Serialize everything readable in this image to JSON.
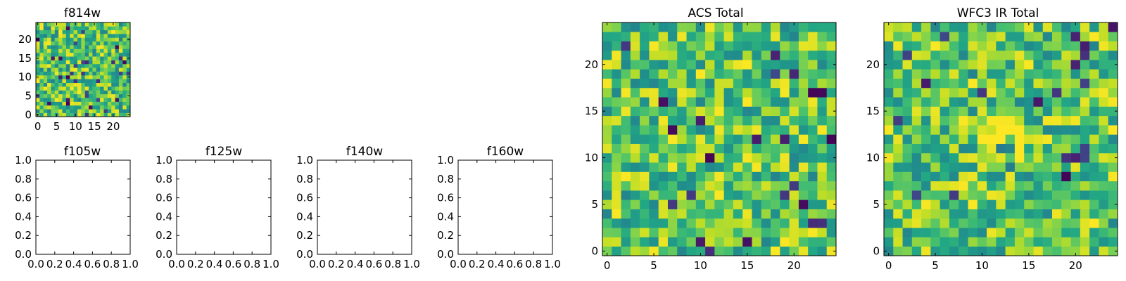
{
  "figure": {
    "background": "#ffffff",
    "colormap": "viridis"
  },
  "chart_data": [
    {
      "id": "f814w",
      "type": "heatmap",
      "title": "f814w",
      "xlabel": "",
      "ylabel": "",
      "size": 25,
      "xlim": [
        -0.5,
        24.5
      ],
      "ylim": [
        -0.5,
        24.5
      ],
      "xticks": [
        0,
        5,
        10,
        15,
        20
      ],
      "yticks": [
        0,
        5,
        10,
        15,
        20
      ],
      "xticklabels": [
        "0",
        "5",
        "10",
        "15",
        "20"
      ],
      "yticklabels": [
        "0",
        "5",
        "10",
        "15",
        "20"
      ],
      "values": "random noise image, pixel values approximately uniform, mostly mid-to-high on colormap with a few low (dark) pixels",
      "seed": 814
    },
    {
      "id": "f105w",
      "type": "heatmap",
      "title": "f105w",
      "xlabel": "",
      "ylabel": "",
      "empty": true,
      "xlim": [
        0,
        1
      ],
      "ylim": [
        0,
        1
      ],
      "xticklabels": [
        "0.0",
        "0.2",
        "0.4",
        "0.6",
        "0.8",
        "1.0"
      ],
      "yticklabels": [
        "0.0",
        "0.2",
        "0.4",
        "0.6",
        "0.8",
        "1.0"
      ]
    },
    {
      "id": "f125w",
      "type": "heatmap",
      "title": "f125w",
      "xlabel": "",
      "ylabel": "",
      "empty": true,
      "xlim": [
        0,
        1
      ],
      "ylim": [
        0,
        1
      ],
      "xticklabels": [
        "0.0",
        "0.2",
        "0.4",
        "0.6",
        "0.8",
        "1.0"
      ],
      "yticklabels": [
        "0.0",
        "0.2",
        "0.4",
        "0.6",
        "0.8",
        "1.0"
      ]
    },
    {
      "id": "f140w",
      "type": "heatmap",
      "title": "f140w",
      "xlabel": "",
      "ylabel": "",
      "empty": true,
      "xlim": [
        0,
        1
      ],
      "ylim": [
        0,
        1
      ],
      "xticklabels": [
        "0.0",
        "0.2",
        "0.4",
        "0.6",
        "0.8",
        "1.0"
      ],
      "yticklabels": [
        "0.0",
        "0.2",
        "0.4",
        "0.6",
        "0.8",
        "1.0"
      ]
    },
    {
      "id": "f160w",
      "type": "heatmap",
      "title": "f160w",
      "xlabel": "",
      "ylabel": "",
      "empty": true,
      "xlim": [
        0,
        1
      ],
      "ylim": [
        0,
        1
      ],
      "xticklabels": [
        "0.0",
        "0.2",
        "0.4",
        "0.6",
        "0.8",
        "1.0"
      ],
      "yticklabels": [
        "0.0",
        "0.2",
        "0.4",
        "0.6",
        "0.8",
        "1.0"
      ]
    },
    {
      "id": "acs_total",
      "type": "heatmap",
      "title": "ACS Total",
      "xlabel": "",
      "ylabel": "",
      "size": 25,
      "xlim": [
        -0.5,
        24.5
      ],
      "ylim": [
        -0.5,
        24.5
      ],
      "xticks": [
        0,
        5,
        10,
        15,
        20
      ],
      "yticks": [
        0,
        5,
        10,
        15,
        20
      ],
      "xticklabels": [
        "0",
        "5",
        "10",
        "15",
        "20"
      ],
      "yticklabels": [
        "0",
        "5",
        "10",
        "15",
        "20"
      ],
      "values": "random noise image, mostly green-yellow with scattered dark blue/purple pixels",
      "seed": 1001
    },
    {
      "id": "wfc3_ir_total",
      "type": "heatmap",
      "title": "WFC3 IR Total",
      "xlabel": "",
      "ylabel": "",
      "size": 25,
      "xlim": [
        -0.5,
        24.5
      ],
      "ylim": [
        -0.5,
        24.5
      ],
      "xticks": [
        0,
        5,
        10,
        15,
        20
      ],
      "yticks": [
        0,
        5,
        10,
        15,
        20
      ],
      "xticklabels": [
        "0",
        "5",
        "10",
        "15",
        "20"
      ],
      "yticklabels": [
        "0",
        "5",
        "10",
        "15",
        "20"
      ],
      "values": "random noise image, mostly teal-green with scattered dark purple pixels and a yellow patch near (12,11)",
      "seed": 2002
    }
  ]
}
